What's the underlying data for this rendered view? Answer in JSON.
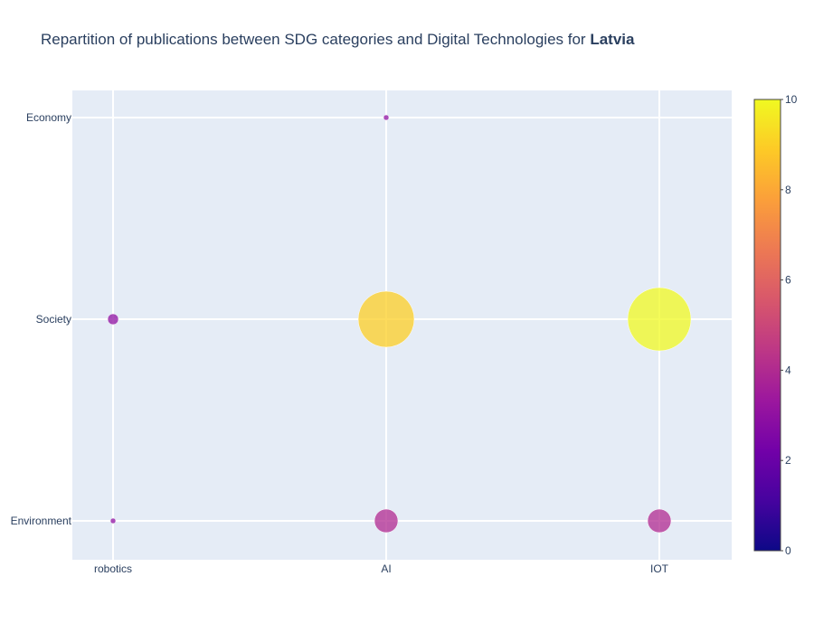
{
  "chart_data": {
    "type": "scatter",
    "title_prefix": "Repartition of publications between SDG categories and Digital Technologies for ",
    "title_country": "Latvia",
    "x_categories": [
      "robotics",
      "AI",
      "IOT"
    ],
    "y_categories": [
      "Environment",
      "Society",
      "Economy"
    ],
    "points": [
      {
        "x": "robotics",
        "y": "Economy",
        "value": null
      },
      {
        "x": "AI",
        "y": "Economy",
        "value": 3
      },
      {
        "x": "robotics",
        "y": "Society",
        "value": 3
      },
      {
        "x": "AI",
        "y": "Society",
        "value": 9
      },
      {
        "x": "IOT",
        "y": "Society",
        "value": 10
      },
      {
        "x": "robotics",
        "y": "Environment",
        "value": 3
      },
      {
        "x": "AI",
        "y": "Environment",
        "value": 4
      },
      {
        "x": "IOT",
        "y": "Environment",
        "value": 4
      }
    ],
    "colorscale": "plasma",
    "colorbar": {
      "min": 0,
      "max": 10,
      "ticks": [
        0,
        2,
        4,
        6,
        8,
        10
      ]
    },
    "grid": true
  }
}
